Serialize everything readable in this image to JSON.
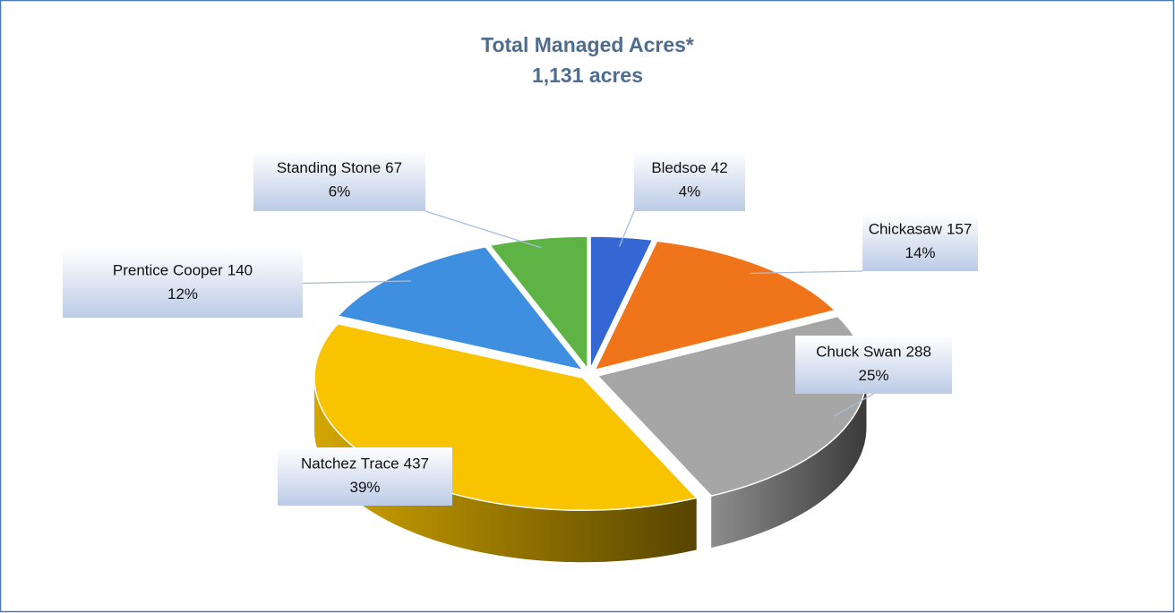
{
  "chart_data": {
    "type": "pie3d",
    "title": "Total Managed Acres*",
    "subtitle": "1,131 acres",
    "categories": [
      "Bledsoe",
      "Chickasaw",
      "Chuck Swan",
      "Natchez Trace",
      "Prentice Cooper",
      "Standing Stone"
    ],
    "values": [
      42,
      157,
      288,
      437,
      140,
      67
    ],
    "percent_labels": [
      "4%",
      "14%",
      "25%",
      "39%",
      "12%",
      "6%"
    ],
    "colors": [
      "#3467d3",
      "#f0751a",
      "#a6a6a6",
      "#f8c300",
      "#3f8fe0",
      "#5db343"
    ]
  }
}
